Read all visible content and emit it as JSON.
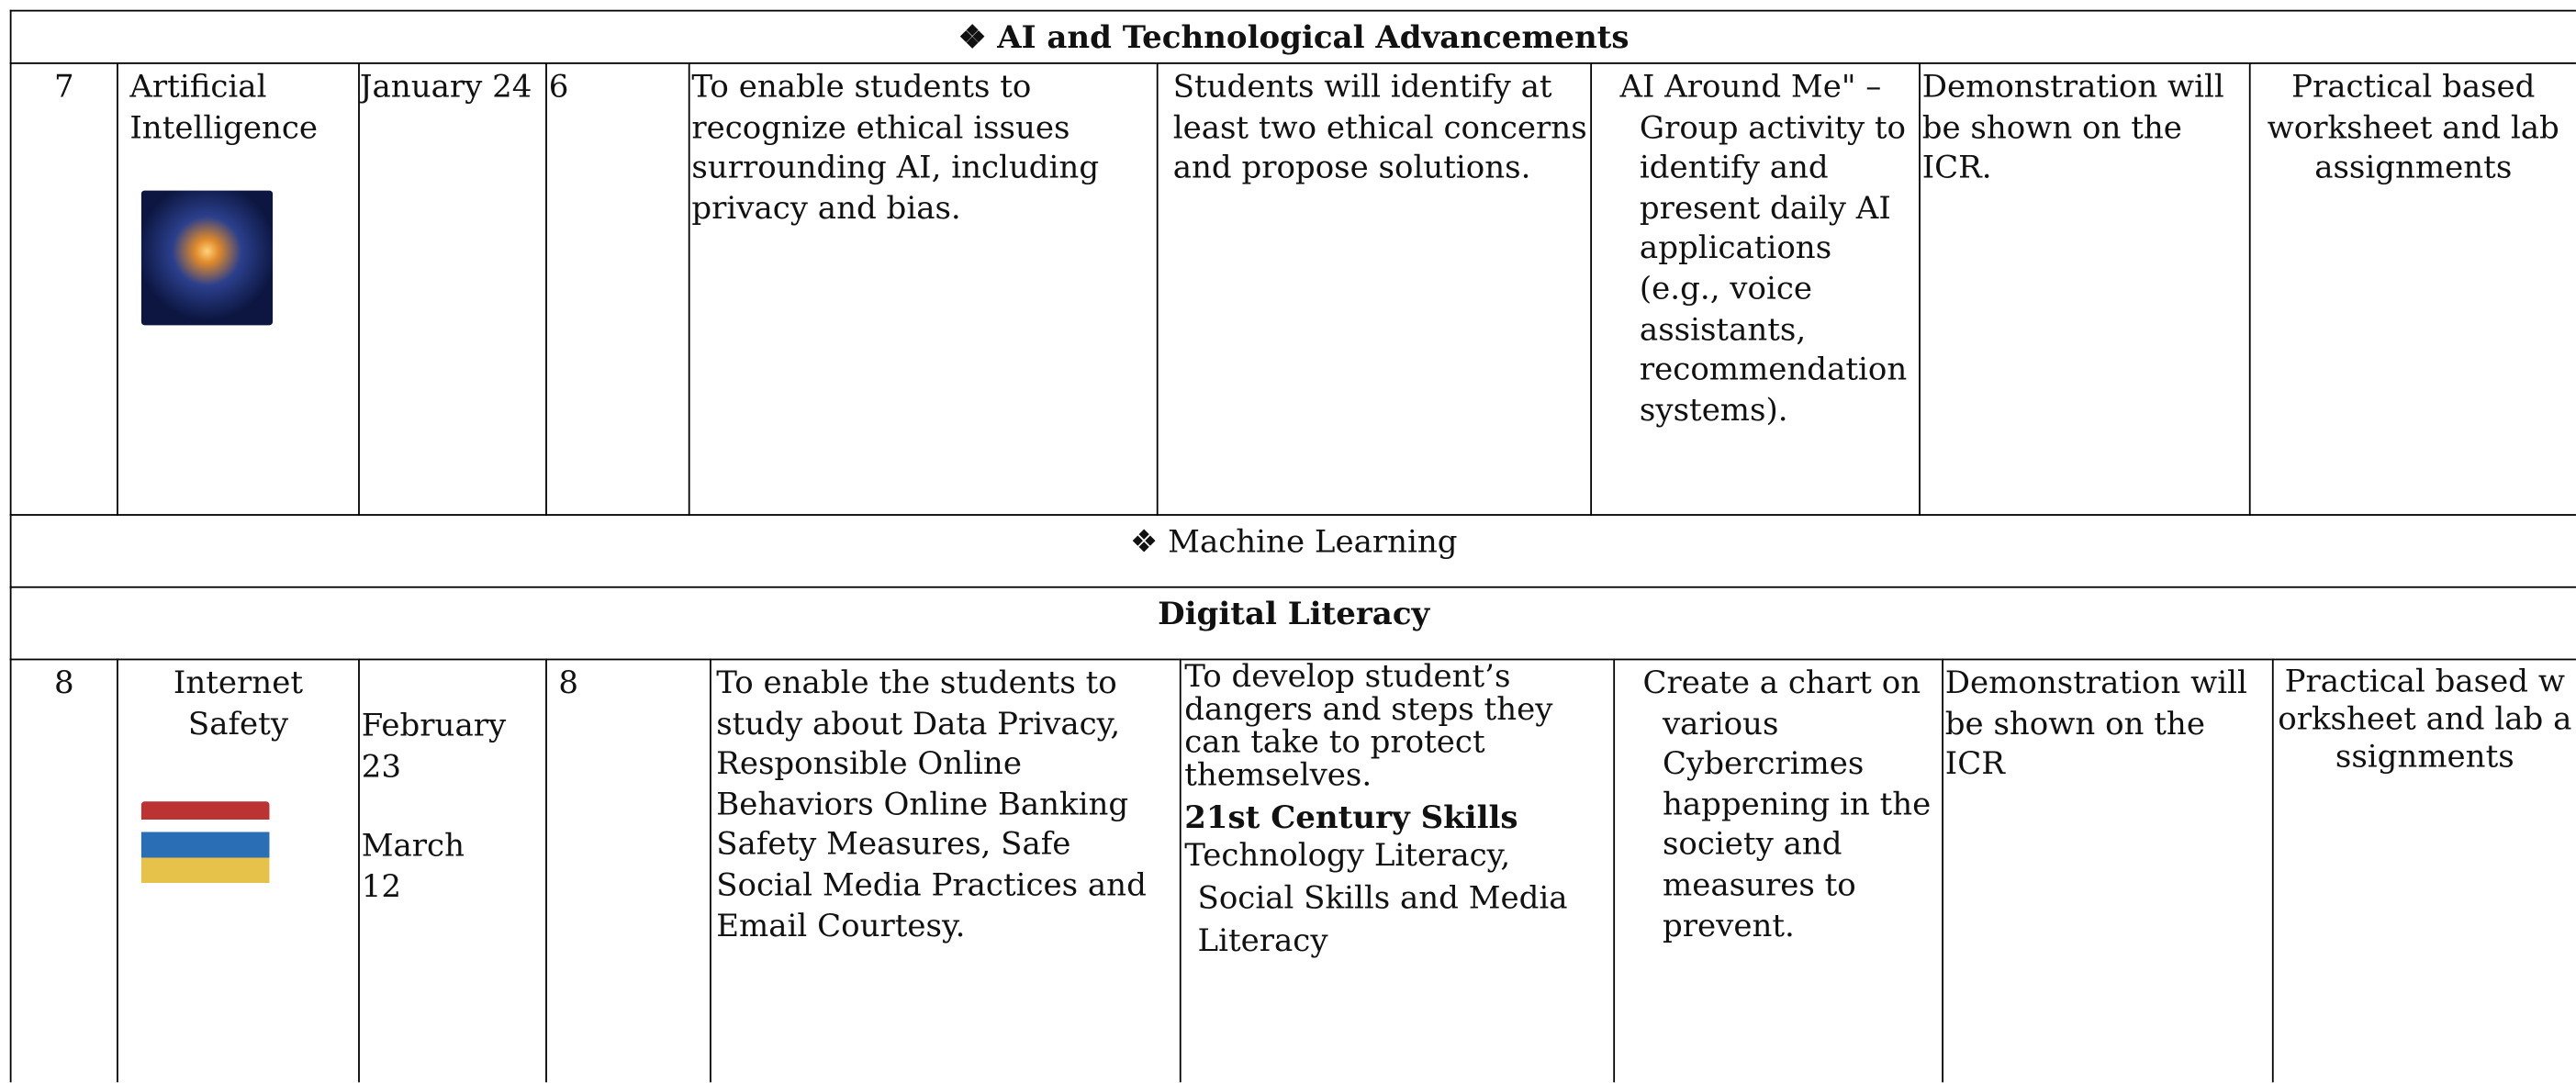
{
  "sections": [
    {
      "title": "❖ AI and Technological Advancements"
    },
    {
      "title": "❖ Machine Learning"
    },
    {
      "title": "Digital Literacy"
    }
  ],
  "rows": [
    {
      "number": "7",
      "topic": "Artificial Intelligence",
      "dates": [
        "January 24"
      ],
      "periods": "6",
      "objective": "To enable students to recognize ethical issues surrounding AI, including privacy and bias.",
      "outcome": "Students will identify at least two ethical concerns and propose solutions.",
      "activity": "AI Around Me\" – Group activity to identify and present daily AI applications (e.g., voice assistants, recommendation systems).",
      "method": "Demonstration will be shown on the ICR.",
      "assessment": "Practical based worksheet and lab assignments"
    },
    {
      "number": "8",
      "topic": "Internet Safety",
      "dates": [
        "February 23",
        "March 12"
      ],
      "periods": "8",
      "objective": "To enable the students to study about Data Privacy, Responsible Online Behaviors Online Banking Safety Measures, Safe Social Media Practices and Email Courtesy.",
      "outcome": "To develop student’s dangers and steps they can take to protect themselves.",
      "skills_heading": "21st Century Skills",
      "skills": "Technology Literacy, Social Skills and Media Literacy",
      "activity": "Create a chart on various Cybercrimes happening in the society and measures to prevent.",
      "method": "Demonstration will be shown on the ICR",
      "assessment": "Practical based worksheet and lab assignments"
    }
  ]
}
